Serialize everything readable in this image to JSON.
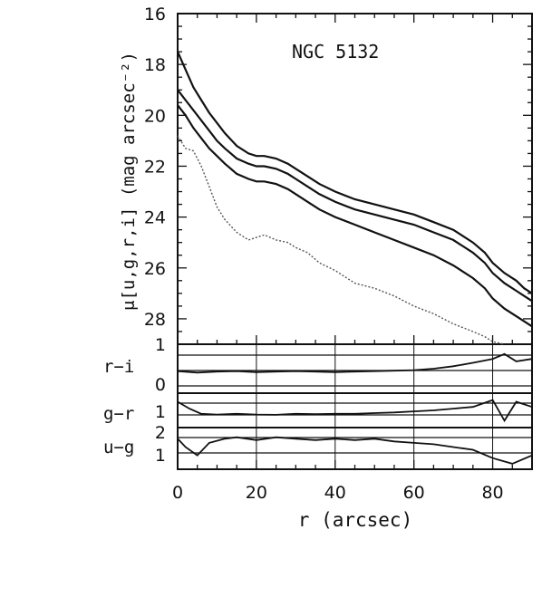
{
  "chart_data": [
    {
      "panel": "surface brightness",
      "type": "line",
      "title": "NGC 5132",
      "ylabel": "μ[u,g,r,i] (mag arcsec⁻²)",
      "ylim": [
        16,
        29
      ],
      "y_inverted": true,
      "yticks": [
        "16",
        "18",
        "20",
        "22",
        "24",
        "26",
        "28"
      ],
      "xlim": [
        0,
        90
      ],
      "series": [
        {
          "style": "solid",
          "x": [
            0,
            2,
            4,
            6,
            8,
            10,
            12,
            15,
            18,
            20,
            22,
            25,
            28,
            30,
            33,
            36,
            40,
            45,
            50,
            55,
            60,
            65,
            70,
            75,
            78,
            80,
            83,
            86,
            88,
            90
          ],
          "y": [
            17.5,
            18.2,
            18.9,
            19.4,
            19.9,
            20.3,
            20.7,
            21.2,
            21.5,
            21.6,
            21.6,
            21.7,
            21.9,
            22.1,
            22.4,
            22.7,
            23.0,
            23.3,
            23.5,
            23.7,
            23.9,
            24.2,
            24.5,
            25.0,
            25.4,
            25.8,
            26.2,
            26.5,
            26.8,
            27.0
          ]
        },
        {
          "style": "solid",
          "x": [
            0,
            2,
            4,
            6,
            8,
            10,
            12,
            15,
            18,
            20,
            22,
            25,
            28,
            30,
            33,
            36,
            40,
            45,
            50,
            55,
            60,
            65,
            70,
            75,
            78,
            80,
            83,
            86,
            88,
            90
          ],
          "y": [
            19.0,
            19.4,
            19.8,
            20.2,
            20.6,
            21.0,
            21.3,
            21.7,
            21.9,
            22.0,
            22.0,
            22.1,
            22.3,
            22.5,
            22.8,
            23.1,
            23.4,
            23.7,
            23.9,
            24.1,
            24.3,
            24.6,
            24.9,
            25.4,
            25.8,
            26.2,
            26.6,
            26.9,
            27.1,
            27.3
          ]
        },
        {
          "style": "solid",
          "x": [
            0,
            2,
            4,
            6,
            8,
            10,
            12,
            15,
            18,
            20,
            22,
            25,
            28,
            30,
            33,
            36,
            40,
            45,
            50,
            55,
            60,
            65,
            70,
            75,
            78,
            80,
            83,
            86,
            88,
            90
          ],
          "y": [
            19.6,
            20.0,
            20.5,
            20.9,
            21.3,
            21.6,
            21.9,
            22.3,
            22.5,
            22.6,
            22.6,
            22.7,
            22.9,
            23.1,
            23.4,
            23.7,
            24.0,
            24.3,
            24.6,
            24.9,
            25.2,
            25.5,
            25.9,
            26.4,
            26.8,
            27.2,
            27.6,
            27.9,
            28.1,
            28.3
          ]
        },
        {
          "style": "dotted",
          "x": [
            0,
            2,
            4,
            6,
            8,
            10,
            12,
            15,
            18,
            20,
            22,
            25,
            28,
            30,
            33,
            36,
            40,
            45,
            50,
            55,
            60,
            65,
            70,
            75,
            78,
            80,
            83
          ],
          "y": [
            20.8,
            21.3,
            21.4,
            22.0,
            22.8,
            23.6,
            24.1,
            24.6,
            24.9,
            24.8,
            24.7,
            24.9,
            25.0,
            25.2,
            25.4,
            25.8,
            26.1,
            26.6,
            26.8,
            27.1,
            27.5,
            27.8,
            28.2,
            28.5,
            28.7,
            28.9,
            29.0
          ]
        }
      ]
    },
    {
      "panel": "colour profiles",
      "type": "line",
      "xlabel": "r (arcsec)",
      "xlim": [
        0,
        90
      ],
      "xticks": [
        "0",
        "20",
        "40",
        "60",
        "80"
      ],
      "tick_labels": [
        "1",
        "0",
        "1",
        "2",
        "1"
      ],
      "ylabels": [
        "r−i",
        "g−r",
        "u−g"
      ],
      "series": [
        {
          "name": "r−i",
          "x": [
            0,
            5,
            10,
            15,
            20,
            25,
            30,
            35,
            40,
            45,
            50,
            55,
            60,
            65,
            70,
            75,
            80,
            83,
            86,
            90
          ],
          "y": [
            0.45,
            0.42,
            0.44,
            0.45,
            0.43,
            0.44,
            0.45,
            0.44,
            0.43,
            0.44,
            0.45,
            0.46,
            0.47,
            0.5,
            0.55,
            0.62,
            0.7,
            0.8,
            0.65,
            0.7
          ]
        },
        {
          "name": "g−r",
          "x": [
            0,
            3,
            6,
            10,
            15,
            20,
            25,
            30,
            35,
            40,
            45,
            50,
            55,
            60,
            65,
            70,
            75,
            80,
            83,
            86,
            90
          ],
          "y": [
            1.15,
            0.95,
            0.8,
            0.78,
            0.8,
            0.78,
            0.77,
            0.8,
            0.79,
            0.8,
            0.8,
            0.82,
            0.84,
            0.87,
            0.9,
            0.95,
            1.0,
            1.2,
            0.6,
            1.15,
            1.0
          ]
        },
        {
          "name": "u−g",
          "x": [
            0,
            2,
            5,
            8,
            12,
            15,
            20,
            25,
            30,
            35,
            40,
            45,
            50,
            55,
            60,
            65,
            70,
            75,
            80,
            85,
            90
          ],
          "y": [
            1.9,
            1.6,
            1.3,
            1.75,
            1.9,
            1.95,
            1.85,
            1.95,
            1.9,
            1.85,
            1.9,
            1.85,
            1.9,
            1.8,
            1.75,
            1.7,
            1.6,
            1.5,
            1.2,
            1.0,
            1.3
          ]
        }
      ]
    }
  ]
}
